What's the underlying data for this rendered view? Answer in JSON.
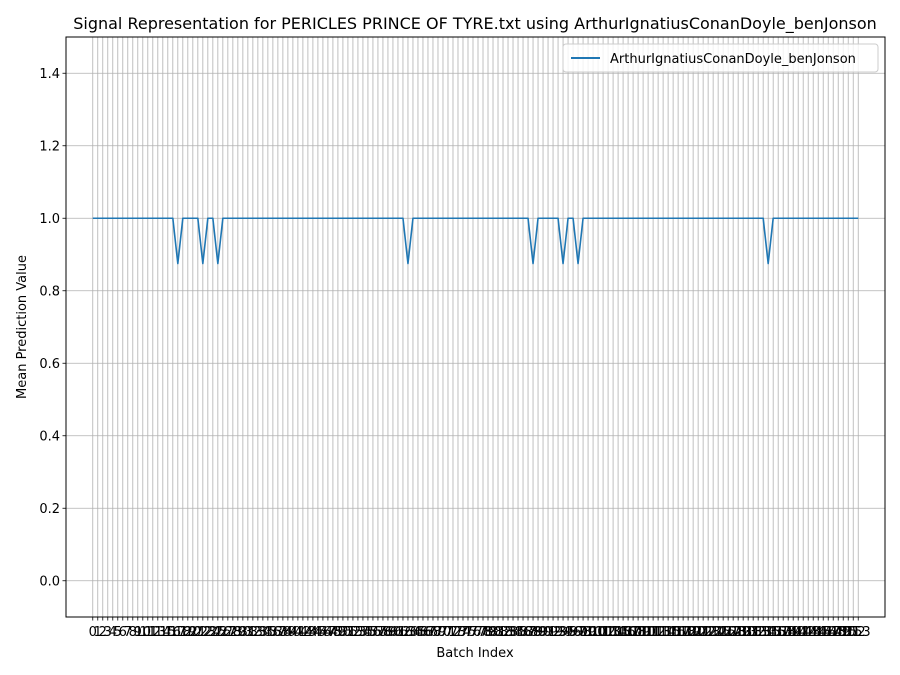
{
  "chart_data": {
    "type": "line",
    "title": "Signal Representation for PERICLES PRINCE OF TYRE.txt using ArthurIgnatiusConanDoyle_benJonson",
    "xlabel": "Batch Index",
    "ylabel": "Mean Prediction Value",
    "ylim": [
      -0.1,
      1.5
    ],
    "xlim": [
      -5.35,
      158.35
    ],
    "yticks": [
      0.0,
      0.2,
      0.4,
      0.6,
      0.8,
      1.0,
      1.2,
      1.4
    ],
    "xtick_step": 1,
    "grid": true,
    "legend": "top-right",
    "line_color": "#1f77b4",
    "series": [
      {
        "name": "ArthurIgnatiusConanDoyle_benJonson",
        "x": [
          0,
          153
        ],
        "baseline": 1.0,
        "dips": [
          {
            "x": 17,
            "y": 0.875
          },
          {
            "x": 22,
            "y": 0.875
          },
          {
            "x": 25,
            "y": 0.875
          },
          {
            "x": 63,
            "y": 0.875
          },
          {
            "x": 88,
            "y": 0.875
          },
          {
            "x": 94,
            "y": 0.875
          },
          {
            "x": 97,
            "y": 0.875
          },
          {
            "x": 135,
            "y": 0.875
          }
        ]
      }
    ]
  }
}
